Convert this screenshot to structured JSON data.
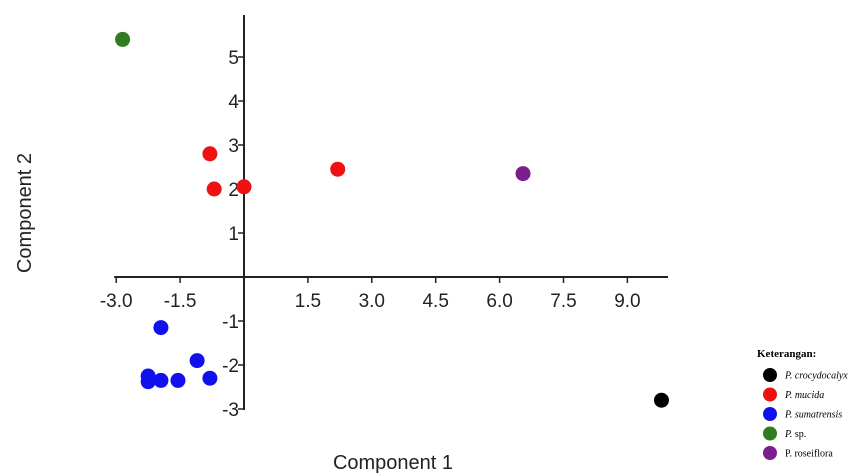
{
  "chart_data": {
    "type": "scatter",
    "xlabel": "Component 1",
    "ylabel": "Component 2",
    "xlim": [
      -3.0,
      10.0
    ],
    "ylim": [
      -3.0,
      6.0
    ],
    "x_ticks": [
      -3.0,
      -1.5,
      1.5,
      3.0,
      4.5,
      6.0,
      7.5,
      9.0
    ],
    "x_tick_labels": [
      "-3.0",
      "-1.5",
      "1.5",
      "3.0",
      "4.5",
      "6.0",
      "7.5",
      "9.0"
    ],
    "y_ticks": [
      -3,
      -2,
      -1,
      1,
      2,
      3,
      4,
      5
    ],
    "y_tick_labels": [
      "-3",
      "-2",
      "-1",
      "1",
      "2",
      "3",
      "4",
      "5"
    ],
    "grid": false,
    "legend_placement": "bottom-right",
    "legend_title": "Keterangan:",
    "series": [
      {
        "name": "P. crocydocalyx",
        "name_main": "P. crocydocalyx",
        "name_suffix": "",
        "color": "#000000",
        "points": [
          [
            9.8,
            -2.8
          ]
        ]
      },
      {
        "name": "P. mucida",
        "name_main": "P. mucida",
        "name_suffix": "",
        "color": "#ee1111",
        "points": [
          [
            -0.8,
            2.8
          ],
          [
            -0.7,
            2.0
          ],
          [
            0.0,
            2.05
          ],
          [
            2.2,
            2.45
          ]
        ]
      },
      {
        "name": "P. sumatrensis",
        "name_main": "P. sumatrensis",
        "name_suffix": "",
        "color": "#1111ee",
        "points": [
          [
            -1.95,
            -1.15
          ],
          [
            -1.1,
            -1.9
          ],
          [
            -2.25,
            -2.25
          ],
          [
            -2.25,
            -2.38
          ],
          [
            -1.95,
            -2.35
          ],
          [
            -1.55,
            -2.35
          ],
          [
            -0.8,
            -2.3
          ]
        ]
      },
      {
        "name": "P. sp.",
        "name_main": "P.",
        "name_suffix": "sp.",
        "color": "#2e7d1e",
        "points": [
          [
            -2.85,
            5.4
          ]
        ]
      },
      {
        "name": "P. roseiflora",
        "name_main": "",
        "name_suffix": "P. roseiflora",
        "color": "#7b1f8f",
        "points": [
          [
            6.55,
            2.35
          ]
        ]
      }
    ]
  }
}
